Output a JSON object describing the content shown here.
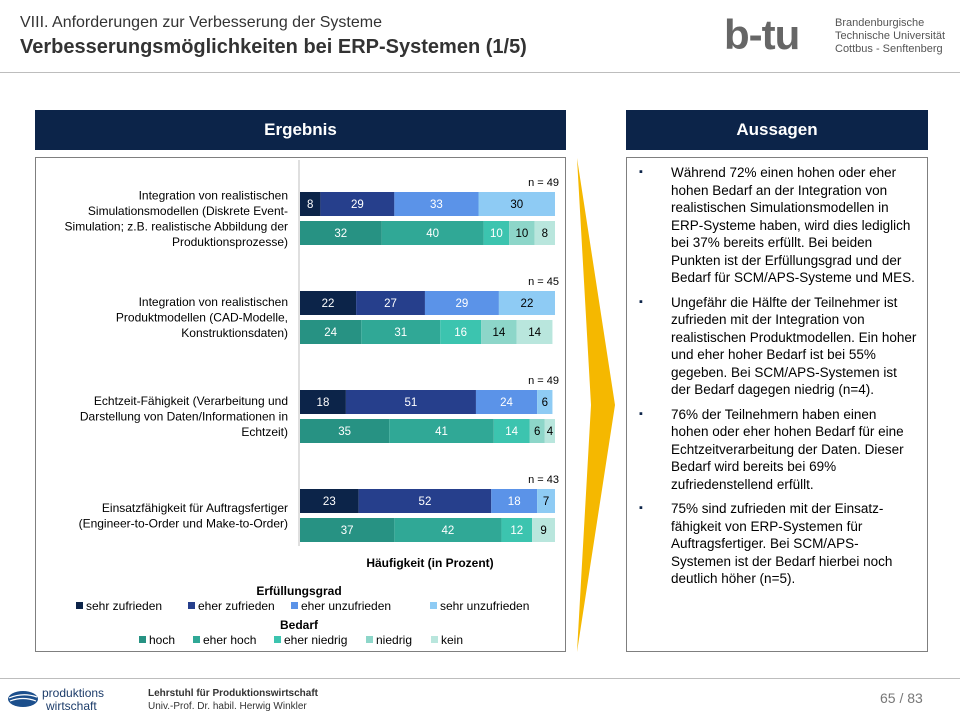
{
  "header": {
    "subtitle": "VIII.  Anforderungen zur Verbesserung der Systeme",
    "title": "Verbesserungsmöglichkeiten bei ERP-Systemen (1/5)",
    "logo_lines": [
      "Brandenburgische",
      "Technische Universität",
      "Cottbus - Senftenberg"
    ],
    "logo_mark": "b-tu"
  },
  "left_panel": {
    "heading": "Ergebnis"
  },
  "right_panel": {
    "heading": "Aussagen",
    "bullets": [
      "Während 72% einen hohen oder eher hohen Bedarf an der Integration von realistischen Simulationsmodellen in ERP-Systeme haben, wird dies lediglich bei 37% bereits erfüllt. Bei beiden Punkten ist der Erfüllungsgrad und der Bedarf für SCM/APS-Systeme und MES.",
      "Ungefähr die Hälfte der Teilnehmer ist zufrieden mit der Integration von realistischen Produktmodellen. Ein hoher und eher hoher Bedarf ist bei 55% gegeben. Bei SCM/APS-Systemen ist der Bedarf dagegen niedrig (n=4).",
      "76% der Teilnehmern haben einen hohen oder eher hohen Bedarf für eine Echtzeitverarbeitung der Daten. Dieser Bedarf wird bereits bei 69% zufriedenstellend erfüllt.",
      "75% sind zufrieden mit der Einsatz-fähigkeit von ERP-Systemen für Auftragsfertiger. Bei SCM/APS-Systemen ist der Bedarf hierbei noch deutlich höher (n=5)."
    ]
  },
  "chart_data": {
    "type": "bar",
    "orientation": "horizontal-stacked",
    "xlabel": "Häufigkeit (in Prozent)",
    "categories": [
      "Integration von realistischen Simulationsmodellen (Diskrete Event-Simulation; z.B. realistische Abbildung der Produktionsprozesse)",
      "Integration von realistischen Produktmodellen (CAD-Modelle, Konstruktionsdaten)",
      "Echtzeit-Fähigkeit (Verarbeitung und Darstellung von Daten/Informationen in Echtzeit)",
      "Einsatzfähigkeit für Auftragsfertiger (Engineer-to-Order und Make-to-Order)"
    ],
    "category_lines": [
      [
        "Integration von realistischen",
        "Simulationsmodellen (Diskrete Event-",
        "Simulation; z.B. realistische Abbildung der",
        "Produktionsprozesse)"
      ],
      [
        "Integration von realistischen",
        "Produktmodellen (CAD-Modelle,",
        "Konstruktionsdaten)"
      ],
      [
        "Echtzeit-Fähigkeit (Verarbeitung und",
        "Darstellung von Daten/Informationen in",
        "Echtzeit)"
      ],
      [
        "Einsatzfähigkeit für Auftragsfertiger",
        "(Engineer-to-Order und Make-to-Order)"
      ]
    ],
    "n_labels": [
      "n = 49",
      "n = 45",
      "n = 49",
      "n = 43"
    ],
    "groups": [
      {
        "name": "Erfüllungsgrad",
        "series": [
          {
            "name": "sehr zufrieden",
            "color": "#0c2449",
            "values": [
              8,
              22,
              18,
              23
            ]
          },
          {
            "name": "eher zufrieden",
            "color": "#263f8c",
            "values": [
              29,
              27,
              51,
              52
            ]
          },
          {
            "name": "eher unzufrieden",
            "color": "#5b93e8",
            "values": [
              33,
              29,
              24,
              18
            ]
          },
          {
            "name": "sehr unzufrieden",
            "color": "#8ecbf4",
            "values": [
              30,
              22,
              6,
              7
            ]
          }
        ]
      },
      {
        "name": "Bedarf",
        "series": [
          {
            "name": "hoch",
            "color": "#279283",
            "values": [
              32,
              24,
              35,
              37
            ]
          },
          {
            "name": "eher hoch",
            "color": "#30a896",
            "values": [
              40,
              31,
              41,
              42
            ]
          },
          {
            "name": "eher niedrig",
            "color": "#3cc4af",
            "values": [
              10,
              16,
              14,
              12
            ]
          },
          {
            "name": "niedrig",
            "color": "#8dd6c9",
            "values": [
              10,
              14,
              6,
              0
            ]
          },
          {
            "name": "kein",
            "color": "#b9e6dd",
            "values": [
              8,
              14,
              4,
              9
            ]
          }
        ]
      }
    ],
    "xlim": [
      0,
      100
    ],
    "legend_placement": "bottom"
  },
  "footer": {
    "logo_lines": [
      "produktions",
      "wirtschaft"
    ],
    "chair": "Lehrstuhl für Produktionswirtschaft",
    "professor": "Univ.-Prof. Dr. habil. Herwig Winkler",
    "page": "65 / 83"
  },
  "colors": {
    "brand_navy": "#0c2449",
    "arrow": "#f5b800",
    "frame": "#7f7f7f"
  }
}
